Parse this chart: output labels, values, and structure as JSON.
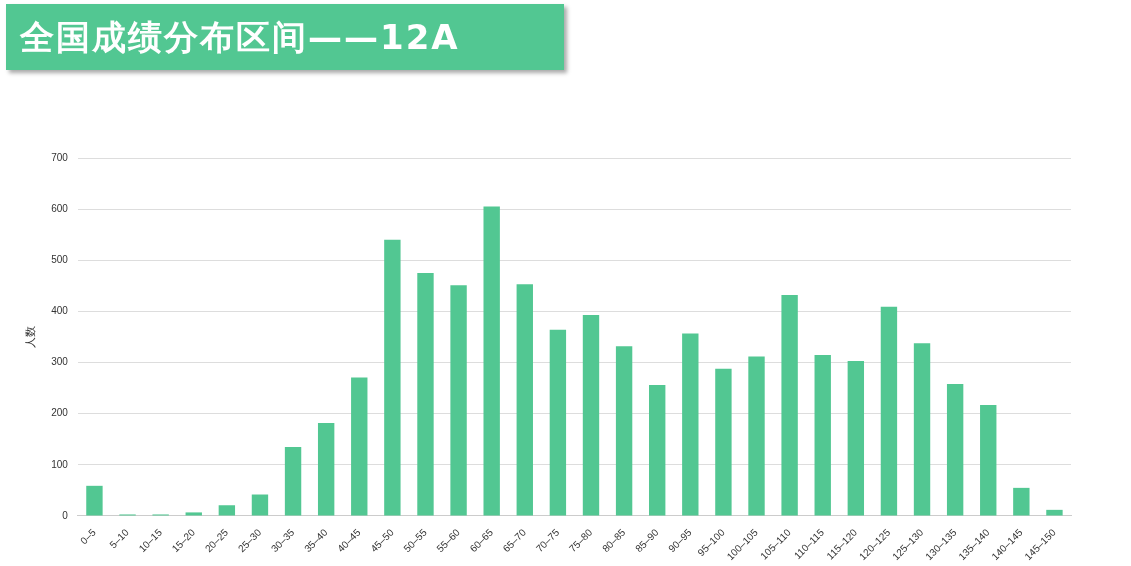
{
  "chart_data": {
    "type": "bar",
    "title": "全国成绩分布区间——12A",
    "ylabel": "人数",
    "categories": [
      "0–5",
      "5–10",
      "10–15",
      "15–20",
      "20–25",
      "25–30",
      "30–35",
      "35–40",
      "40–45",
      "45–50",
      "50–55",
      "55–60",
      "60–65",
      "65–70",
      "70–75",
      "75–80",
      "80–85",
      "85–90",
      "90–95",
      "95–100",
      "100–105",
      "105–110",
      "110–115",
      "115–120",
      "120–125",
      "125–130",
      "130–135",
      "135–140",
      "140–145",
      "145–150"
    ],
    "values": [
      59,
      3,
      3,
      7,
      21,
      42,
      135,
      182,
      271,
      540,
      475,
      451,
      605,
      453,
      364,
      393,
      332,
      256,
      357,
      288,
      312,
      432,
      315,
      303,
      409,
      338,
      258,
      217,
      55,
      12
    ],
    "color": "#52c792",
    "ylim": [
      0,
      700
    ],
    "yticks": [
      0,
      100,
      200,
      300,
      400,
      500,
      600,
      700
    ],
    "grid": "y"
  }
}
